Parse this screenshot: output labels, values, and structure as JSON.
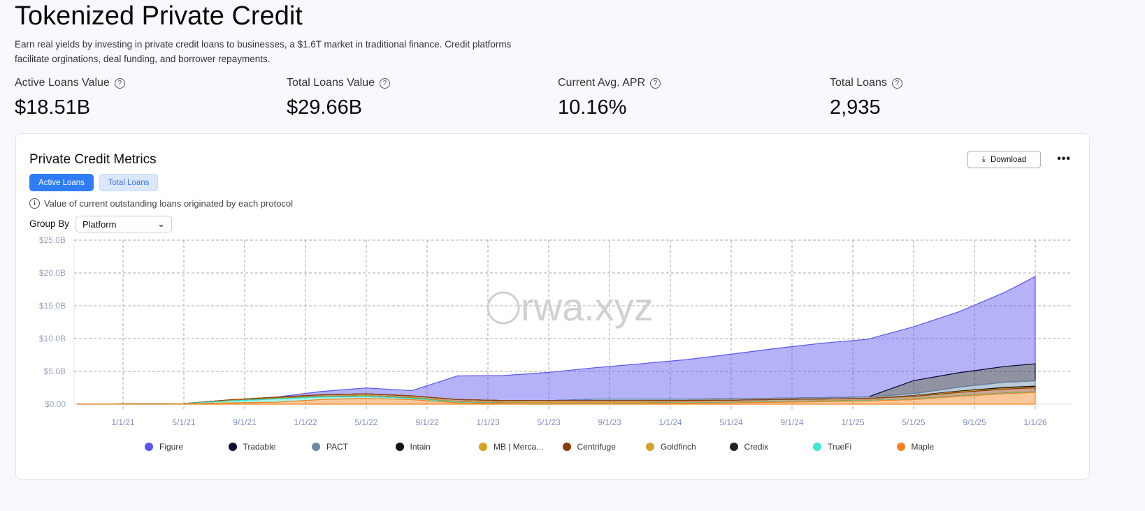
{
  "header": {
    "title": "Tokenized Private Credit",
    "description": "Earn real yields by investing in private credit loans to businesses, a $1.6T market in traditional finance. Credit platforms facilitate orginations, deal funding, and borrower repayments."
  },
  "stats": [
    {
      "label": "Active Loans Value",
      "value": "$18.51B"
    },
    {
      "label": "Total Loans Value",
      "value": "$29.66B"
    },
    {
      "label": "Current Avg. APR",
      "value": "10.16%"
    },
    {
      "label": "Total Loans",
      "value": "2,935"
    }
  ],
  "card": {
    "title": "Private Credit Metrics",
    "tabs": [
      "Active Loans",
      "Total Loans"
    ],
    "info": "Value of current outstanding loans originated by each protocol",
    "group_by_label": "Group By",
    "group_by_value": "Platform",
    "download_label": "Download",
    "more_label": "•••",
    "watermark": "rwa.xyz"
  },
  "chart_data": {
    "type": "area",
    "stacked": true,
    "ylim": [
      0,
      25
    ],
    "yticks": [
      "$0.00",
      "$5.0B",
      "$10.0B",
      "$15.0B",
      "$20.0B",
      "$25.0B"
    ],
    "xticks": [
      "1/1/21",
      "5/1/21",
      "9/1/21",
      "1/1/22",
      "5/1/22",
      "9/1/22",
      "1/1/23",
      "5/1/23",
      "9/1/23",
      "1/1/24",
      "5/1/24",
      "9/1/24",
      "1/1/25",
      "5/1/25",
      "9/1/25",
      "1/1/26"
    ],
    "x": [
      "2020-10",
      "2021-02",
      "2021-05",
      "2021-08",
      "2021-11",
      "2022-02",
      "2022-05",
      "2022-08",
      "2022-11",
      "2023-02",
      "2023-05",
      "2023-08",
      "2023-11",
      "2024-02",
      "2024-05",
      "2024-08",
      "2024-11",
      "2025-02",
      "2025-05",
      "2025-08",
      "2025-11",
      "2026-01"
    ],
    "series": [
      {
        "name": "Figure",
        "color": "#5b55f0",
        "values": [
          0,
          0,
          0,
          0,
          0,
          0.5,
          0.9,
          0.8,
          3.6,
          3.8,
          4.3,
          4.8,
          5.4,
          6.0,
          6.8,
          7.6,
          8.3,
          8.8,
          8.2,
          9.3,
          11.3,
          13.3
        ]
      },
      {
        "name": "Tradable",
        "color": "#0b1033",
        "values": [
          0,
          0,
          0,
          0,
          0,
          0,
          0,
          0,
          0,
          0,
          0,
          0,
          0,
          0,
          0,
          0,
          0,
          0,
          2.0,
          2.2,
          2.4,
          2.6
        ]
      },
      {
        "name": "PACT",
        "color": "#6a8aa8",
        "values": [
          0,
          0,
          0,
          0,
          0,
          0,
          0,
          0,
          0,
          0,
          0,
          0.2,
          0.2,
          0.2,
          0.2,
          0.2,
          0.2,
          0.2,
          0.3,
          0.6,
          0.8,
          0.8
        ]
      },
      {
        "name": "Intain",
        "color": "#111111",
        "values": [
          0,
          0,
          0,
          0,
          0,
          0,
          0,
          0,
          0,
          0,
          0,
          0,
          0,
          0,
          0,
          0,
          0,
          0,
          0.05,
          0.1,
          0.15,
          0.15
        ]
      },
      {
        "name": "MB | Merca...",
        "color": "#d6a020",
        "values": [
          0,
          0,
          0,
          0,
          0,
          0,
          0,
          0,
          0,
          0,
          0,
          0,
          0,
          0,
          0,
          0,
          0,
          0,
          0.05,
          0.1,
          0.1,
          0.1
        ]
      },
      {
        "name": "Centrifuge",
        "color": "#8b3a0a",
        "values": [
          0,
          0,
          0,
          0.1,
          0.15,
          0.2,
          0.25,
          0.25,
          0.3,
          0.3,
          0.3,
          0.3,
          0.3,
          0.3,
          0.3,
          0.3,
          0.3,
          0.3,
          0.4,
          0.5,
          0.6,
          0.6
        ]
      },
      {
        "name": "Goldfinch",
        "color": "#d4a02a",
        "values": [
          0,
          0,
          0,
          0.05,
          0.08,
          0.1,
          0.1,
          0.1,
          0.1,
          0.1,
          0.1,
          0.1,
          0.1,
          0.08,
          0.07,
          0.06,
          0.05,
          0.05,
          0.05,
          0.05,
          0.05,
          0.05
        ]
      },
      {
        "name": "Credix",
        "color": "#222222",
        "values": [
          0,
          0,
          0,
          0.01,
          0.02,
          0.03,
          0.03,
          0.02,
          0.01,
          0.01,
          0,
          0,
          0,
          0,
          0,
          0,
          0,
          0,
          0,
          0,
          0,
          0
        ]
      },
      {
        "name": "TrueFi",
        "color": "#3ee8d0",
        "values": [
          0,
          0.03,
          0.05,
          0.3,
          0.5,
          0.4,
          0.3,
          0.2,
          0.1,
          0.05,
          0.05,
          0.05,
          0.05,
          0.05,
          0.05,
          0.05,
          0.05,
          0.05,
          0.05,
          0.05,
          0.05,
          0.05
        ]
      },
      {
        "name": "Maple",
        "color": "#f5821f",
        "values": [
          0.02,
          0.02,
          0.05,
          0.2,
          0.3,
          0.7,
          0.9,
          0.7,
          0.2,
          0.1,
          0.1,
          0.1,
          0.1,
          0.15,
          0.2,
          0.3,
          0.4,
          0.5,
          0.7,
          1.2,
          1.6,
          1.8
        ]
      }
    ]
  }
}
